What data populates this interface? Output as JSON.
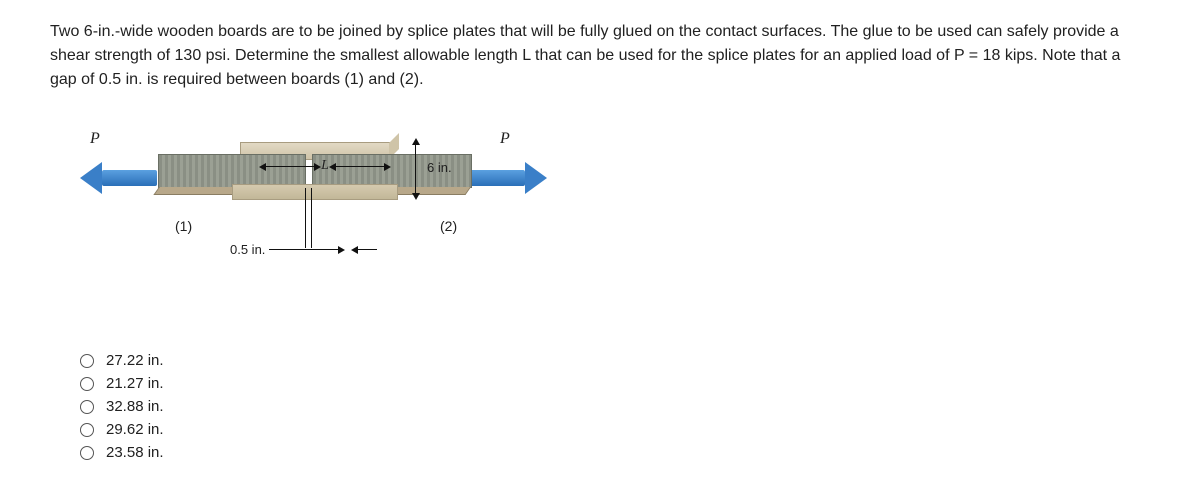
{
  "question": "Two 6-in.-wide wooden boards are to be joined by splice plates that will be fully glued on the contact surfaces. The glue to be used can safely provide a shear strength of 130 psi. Determine the smallest allowable length L that can be used for the splice plates for an applied load of P = 18 kips. Note that a gap of 0.5 in. is required between boards (1) and (2).",
  "figure": {
    "p_label": "P",
    "L_label": "L",
    "width_label": "6 in.",
    "board1_label": "(1)",
    "board2_label": "(2)",
    "gap_label": "0.5 in."
  },
  "options": [
    "27.22 in.",
    "21.27 in.",
    "32.88 in.",
    "29.62 in.",
    "23.58 in."
  ]
}
